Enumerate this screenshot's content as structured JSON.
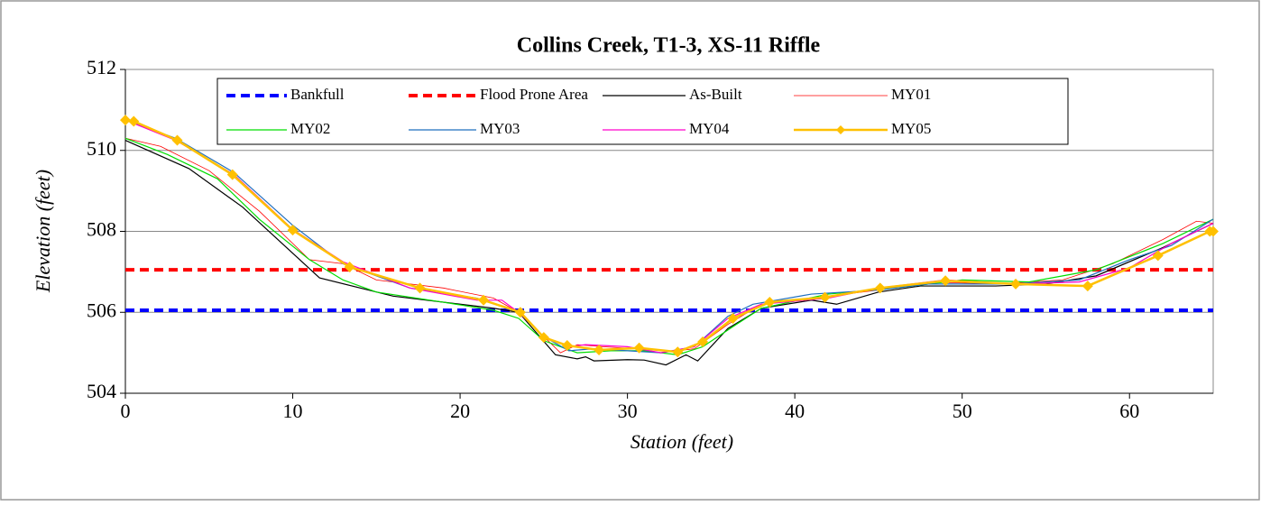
{
  "chart_data": {
    "type": "line",
    "title": "Collins Creek, T1-3, XS-11 Riffle",
    "xlabel": "Station (feet)",
    "ylabel": "Elevation (feet)",
    "xlim": [
      0,
      65
    ],
    "ylim": [
      504,
      512
    ],
    "xticks": [
      0,
      10,
      20,
      30,
      40,
      50,
      60
    ],
    "yticks": [
      504,
      506,
      508,
      510,
      512
    ],
    "grid": true,
    "series": [
      {
        "name": "Bankfull",
        "color": "#0000ff",
        "linestyle": "dashed",
        "linewidth": 4,
        "x": [
          0,
          65
        ],
        "values": [
          506.05,
          506.05
        ]
      },
      {
        "name": "Flood Prone Area",
        "color": "#ff0000",
        "linestyle": "dashed",
        "linewidth": 4,
        "x": [
          0,
          65
        ],
        "values": [
          507.05,
          507.05
        ]
      },
      {
        "name": "As-Built",
        "color": "#000000",
        "linestyle": "solid",
        "linewidth": 1.2,
        "x": [
          0,
          3.8,
          7,
          11.6,
          16,
          22,
          23.5,
          25.7,
          27,
          27.5,
          28,
          30,
          31,
          32.3,
          33.5,
          34.2,
          36,
          38,
          41,
          42.5,
          45,
          47.5,
          52,
          55,
          58,
          62,
          65
        ],
        "values": [
          510.25,
          509.55,
          508.6,
          506.85,
          506.4,
          506.1,
          506.0,
          504.95,
          504.85,
          504.9,
          504.8,
          504.83,
          504.82,
          504.7,
          504.95,
          504.8,
          505.6,
          506.1,
          506.3,
          506.2,
          506.5,
          506.65,
          506.65,
          506.7,
          506.9,
          507.6,
          508.2
        ]
      },
      {
        "name": "MY01",
        "color": "#ff0000",
        "linestyle": "solid",
        "linewidth": 0.8,
        "x": [
          0,
          2.1,
          5,
          8,
          11,
          13,
          15,
          19,
          22,
          23.5,
          25,
          26,
          27,
          28.5,
          30.5,
          32,
          34,
          36,
          38,
          42,
          45,
          48,
          52,
          56,
          59,
          62,
          64,
          65
        ],
        "values": [
          510.3,
          510.1,
          509.5,
          508.5,
          507.3,
          507.2,
          506.8,
          506.6,
          506.35,
          506.0,
          505.4,
          505.0,
          505.2,
          505.15,
          505.1,
          505.0,
          505.1,
          505.7,
          506.2,
          506.4,
          506.55,
          506.75,
          506.7,
          506.8,
          507.2,
          507.8,
          508.25,
          508.2
        ]
      },
      {
        "name": "MY02",
        "color": "#00dd00",
        "linestyle": "solid",
        "linewidth": 1.2,
        "x": [
          0,
          2.5,
          5.5,
          8,
          11,
          13,
          15,
          19,
          22,
          23.5,
          25,
          27,
          29,
          31,
          33,
          34.5,
          36.5,
          38,
          42,
          46,
          50,
          54,
          58,
          62,
          65
        ],
        "values": [
          510.3,
          509.9,
          509.3,
          508.3,
          507.3,
          506.8,
          506.5,
          506.25,
          506.05,
          505.85,
          505.3,
          505.0,
          505.05,
          505.05,
          504.95,
          505.15,
          505.7,
          506.1,
          506.45,
          506.6,
          506.8,
          506.75,
          507.05,
          507.7,
          508.3
        ]
      },
      {
        "name": "MY03",
        "color": "#1f6fbf",
        "linestyle": "solid",
        "linewidth": 1.2,
        "x": [
          0,
          3,
          6.5,
          10,
          13,
          17,
          21,
          23.5,
          25,
          26.5,
          28,
          30,
          32,
          34,
          36,
          37.5,
          41,
          45,
          48,
          53,
          57,
          60,
          62.5,
          65
        ],
        "values": [
          510.75,
          510.3,
          509.45,
          508.15,
          507.2,
          506.6,
          506.35,
          506.0,
          505.4,
          505.05,
          505.1,
          505.05,
          505.0,
          505.15,
          505.9,
          506.2,
          506.45,
          506.55,
          506.7,
          506.7,
          506.8,
          507.3,
          507.65,
          508.3
        ]
      },
      {
        "name": "MY04",
        "color": "#ff00cc",
        "linestyle": "solid",
        "linewidth": 1.2,
        "x": [
          0,
          3,
          6.5,
          10,
          13,
          17,
          21,
          22.5,
          23.5,
          25,
          26.5,
          27.5,
          30,
          32,
          34,
          36,
          38,
          42,
          45,
          49,
          53,
          57,
          60,
          62.5,
          65
        ],
        "values": [
          510.75,
          510.25,
          509.4,
          508.05,
          507.25,
          506.6,
          506.3,
          506.3,
          506.0,
          505.4,
          505.15,
          505.2,
          505.15,
          505.0,
          505.15,
          505.85,
          506.2,
          506.35,
          506.6,
          506.8,
          506.7,
          506.75,
          507.1,
          507.7,
          508.2
        ]
      },
      {
        "name": "MY05",
        "color": "#ffc000",
        "linestyle": "solid",
        "linewidth": 2.5,
        "marker": "diamond",
        "x": [
          0,
          0.5,
          3.1,
          6.4,
          10,
          13.4,
          17.6,
          21.4,
          23.6,
          25,
          26.4,
          28.3,
          30.7,
          33,
          34.5,
          36.3,
          38.5,
          41.8,
          45.1,
          49,
          53.2,
          57.5,
          61.7,
          64.8,
          65
        ],
        "values": [
          510.75,
          510.72,
          510.25,
          509.4,
          508.03,
          507.12,
          506.6,
          506.3,
          506.0,
          505.38,
          505.18,
          505.07,
          505.12,
          505.02,
          505.27,
          505.85,
          506.25,
          506.37,
          506.6,
          506.78,
          506.7,
          506.65,
          507.4,
          508.0,
          508.0
        ]
      }
    ]
  }
}
